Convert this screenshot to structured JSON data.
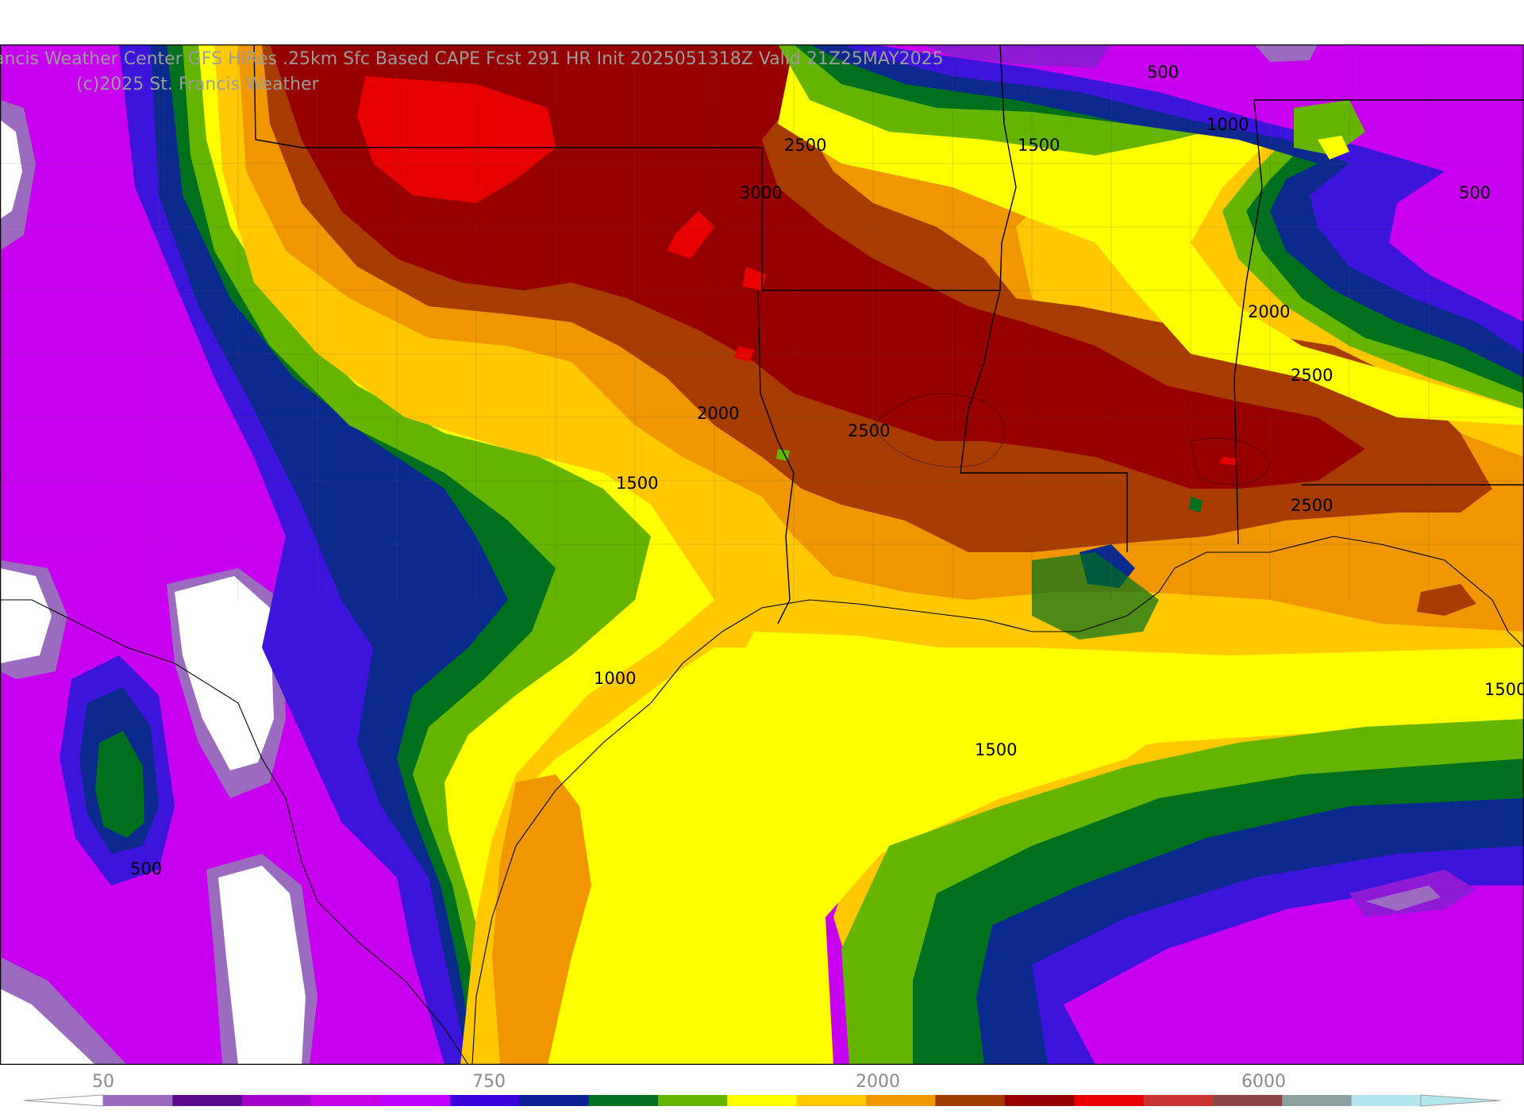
{
  "header": {
    "title": "ancis Weather Center GFS HiRes .25km Sfc Based CAPE  Fcst 291 HR Init 2025051318Z  Valid 21Z25MAY2025",
    "copyright": "(c)2025 St. Francis Weather"
  },
  "contour_labels": [
    "500",
    "1000",
    "1500",
    "2500",
    "3000",
    "500",
    "2000",
    "2500",
    "2000",
    "2500",
    "1500",
    "2500",
    "1000",
    "1500",
    "1500",
    "500"
  ],
  "colorbar": {
    "tick_labels": [
      "50",
      "750",
      "2000",
      "6000"
    ],
    "colors": [
      "#9b6bbf",
      "#5a0a8c",
      "#a000c8",
      "#c800e6",
      "#c000ff",
      "#3c00dc",
      "#0a1e96",
      "#00701e",
      "#64b400",
      "#ffff00",
      "#ffc800",
      "#f09600",
      "#a03c00",
      "#960000",
      "#e60000",
      "#c83232",
      "#8c4646",
      "#8ca0a0",
      "#b4e6f0"
    ]
  },
  "palette": {
    "white": "#ffffff",
    "lavender": "#9b6bbf",
    "magenta": "#c800f0",
    "violet": "#8f1ad6",
    "blue": "#3c14dc",
    "navy": "#0c2a8e",
    "darkgreen": "#00701e",
    "green": "#64b400",
    "yellow": "#ffff00",
    "gold": "#ffc800",
    "orange": "#f09600",
    "rust": "#a83c00",
    "darkred": "#960000",
    "red": "#e60000"
  }
}
